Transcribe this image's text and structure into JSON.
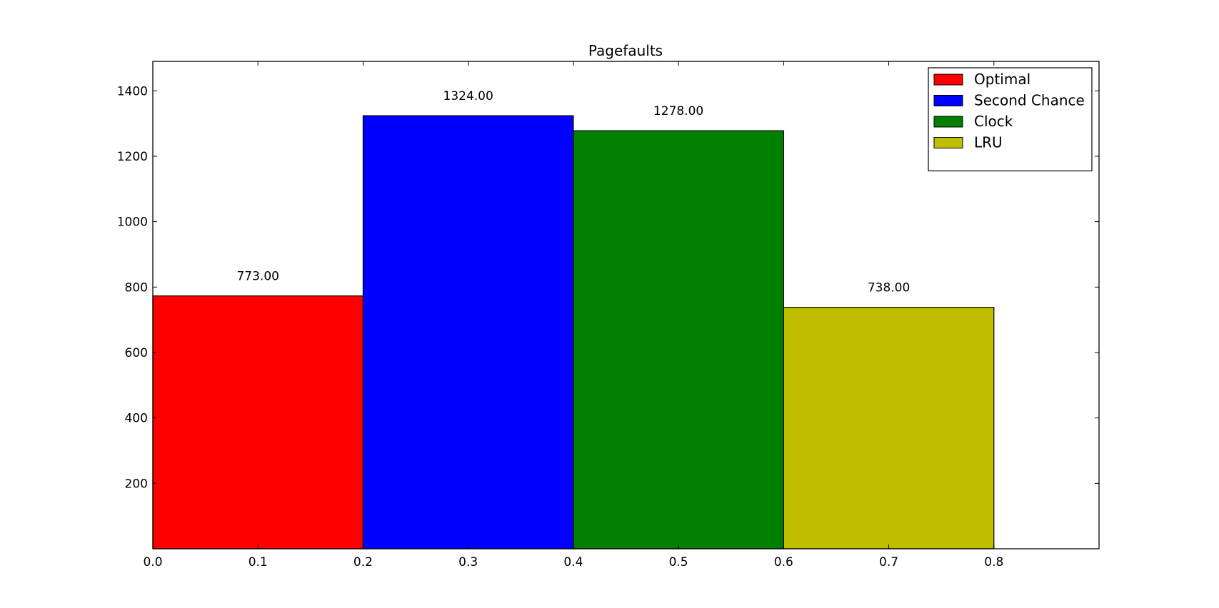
{
  "chart_data": {
    "type": "bar",
    "title": "Pagefaults",
    "xlabel": "",
    "ylabel": "",
    "xlim": [
      0.0,
      0.9
    ],
    "ylim": [
      0,
      1490
    ],
    "xticks": [
      "0.0",
      "0.1",
      "0.2",
      "0.3",
      "0.4",
      "0.5",
      "0.6",
      "0.7",
      "0.8"
    ],
    "yticks": [
      "200",
      "400",
      "600",
      "800",
      "1000",
      "1200",
      "1400"
    ],
    "bar_width": 0.2,
    "series": [
      {
        "name": "Optimal",
        "x": 0.0,
        "value": 773,
        "label": "773.00",
        "color": "#ff0000"
      },
      {
        "name": "Second Chance",
        "x": 0.2,
        "value": 1324,
        "label": "1324.00",
        "color": "#0000ff"
      },
      {
        "name": "Clock",
        "x": 0.4,
        "value": 1278,
        "label": "1278.00",
        "color": "#008000"
      },
      {
        "name": "LRU",
        "x": 0.6,
        "value": 738,
        "label": "738.00",
        "color": "#bfbf00"
      }
    ],
    "grid": false,
    "legend_position": "top-right"
  }
}
